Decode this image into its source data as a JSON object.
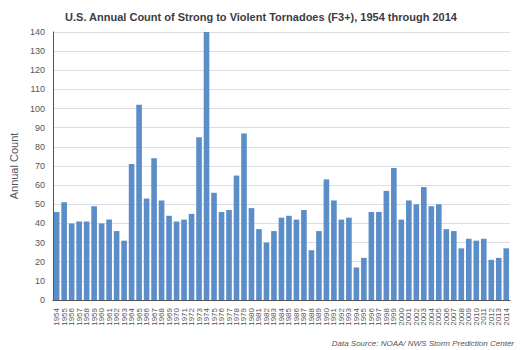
{
  "chart_data": {
    "type": "bar",
    "title": "U.S. Annual Count of Strong to Violent Tornadoes (F3+), 1954 through 2014",
    "ylabel": "Annual Count",
    "annotations": [
      "Data Source: NOAA/ NWS Storm Prediction Center"
    ],
    "categories": [
      "1954",
      "1955",
      "1956",
      "1957",
      "1958",
      "1959",
      "1960",
      "1961",
      "1962",
      "1963",
      "1964",
      "1965",
      "1966",
      "1967",
      "1968",
      "1969",
      "1970",
      "1971",
      "1972",
      "1973",
      "1974",
      "1975",
      "1976",
      "1977",
      "1978",
      "1979",
      "1980",
      "1981",
      "1982",
      "1983",
      "1984",
      "1985",
      "1986",
      "1987",
      "1988",
      "1989",
      "1990",
      "1991",
      "1992",
      "1993",
      "1994",
      "1995",
      "1996",
      "1997",
      "1998",
      "1999",
      "2000",
      "2001",
      "2002",
      "2003",
      "2004",
      "2005",
      "2006",
      "2007",
      "2008",
      "2009",
      "2010",
      "2011",
      "2012",
      "2013",
      "2014"
    ],
    "values": [
      46,
      51,
      40,
      41,
      41,
      49,
      40,
      42,
      36,
      31,
      71,
      102,
      53,
      74,
      52,
      44,
      41,
      42,
      45,
      85,
      140,
      56,
      46,
      47,
      65,
      87,
      48,
      37,
      30,
      36,
      43,
      44,
      42,
      47,
      26,
      36,
      63,
      52,
      42,
      43,
      17,
      22,
      46,
      46,
      57,
      69,
      42,
      52,
      50,
      59,
      49,
      50,
      37,
      36,
      27,
      32,
      31,
      32,
      21,
      22,
      27
    ],
    "color": "#5b8dc8",
    "ylim": [
      0,
      140
    ],
    "yticks": [
      0,
      10,
      20,
      30,
      40,
      50,
      60,
      70,
      80,
      90,
      100,
      110,
      120,
      130,
      140
    ],
    "grid": true
  }
}
